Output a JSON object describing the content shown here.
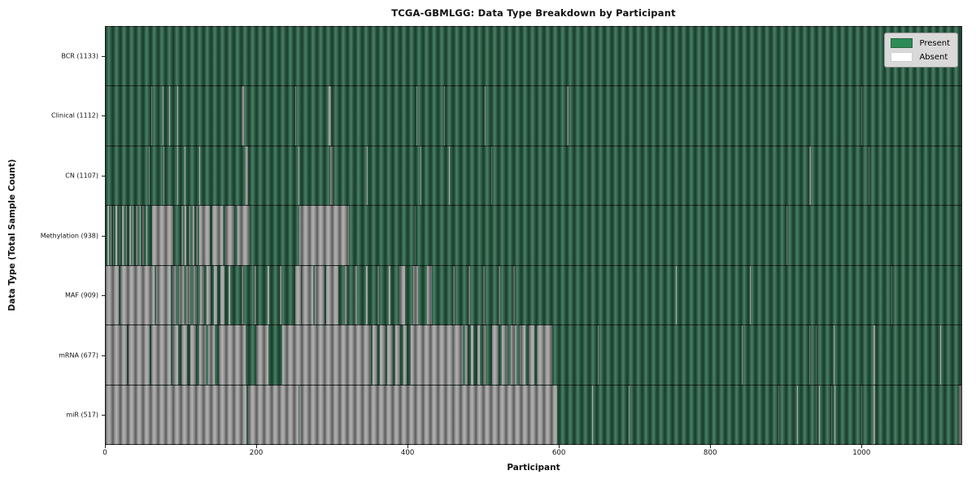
{
  "title": "TCGA-GBMLGG: Data Type Breakdown by Participant",
  "legend": {
    "present_label": "Present",
    "absent_label": "Absent"
  },
  "chart_data": {
    "type": "heatmap",
    "title": "TCGA-GBMLGG: Data Type Breakdown by Participant",
    "xlabel": "Participant",
    "ylabel": "Data Type (Total Sample Count)",
    "n_participants": 1133,
    "x_ticks": [
      0,
      200,
      400,
      600,
      800,
      1000
    ],
    "x_range": [
      0,
      1133
    ],
    "grid": false,
    "legend_position": "upper right",
    "colors": {
      "present": "#31694e",
      "absent": "#a5a5a5",
      "legend_present": "#2e8b57",
      "legend_absent": "#ffffff",
      "legend_bg": "#d9d9d9"
    },
    "rows": [
      {
        "label": "BCR (1133)",
        "name": "BCR",
        "total_samples": 1133,
        "absent_ranges": []
      },
      {
        "label": "Clinical (1112)",
        "name": "Clinical",
        "total_samples": 1112,
        "absent_ranges": [
          [
            60,
            61
          ],
          [
            75,
            76
          ],
          [
            84,
            85
          ],
          [
            95,
            96
          ],
          [
            180,
            183
          ],
          [
            251,
            252
          ],
          [
            295,
            298
          ],
          [
            411,
            412
          ],
          [
            448,
            449
          ],
          [
            502,
            503
          ],
          [
            611,
            613
          ],
          [
            1000,
            1002
          ]
        ]
      },
      {
        "label": "CN (1107)",
        "name": "CN",
        "total_samples": 1107,
        "absent_ranges": [
          [
            57,
            58
          ],
          [
            77,
            78
          ],
          [
            95,
            96
          ],
          [
            104,
            105
          ],
          [
            124,
            125
          ],
          [
            185,
            188
          ],
          [
            255,
            256
          ],
          [
            297,
            300
          ],
          [
            346,
            347
          ],
          [
            417,
            418
          ],
          [
            455,
            456
          ],
          [
            511,
            512
          ],
          [
            932,
            934
          ],
          [
            1010,
            1011
          ]
        ]
      },
      {
        "label": "Methylation (938)",
        "name": "Methylation",
        "total_samples": 938,
        "absent_ranges": [
          [
            2,
            4
          ],
          [
            6,
            8
          ],
          [
            10,
            11
          ],
          [
            13,
            15
          ],
          [
            18,
            19
          ],
          [
            22,
            24
          ],
          [
            27,
            28
          ],
          [
            31,
            33
          ],
          [
            36,
            37
          ],
          [
            40,
            42
          ],
          [
            45,
            46
          ],
          [
            49,
            51
          ],
          [
            54,
            55
          ],
          [
            61,
            89
          ],
          [
            100,
            102
          ],
          [
            105,
            107
          ],
          [
            110,
            112
          ],
          [
            115,
            117
          ],
          [
            120,
            122
          ],
          [
            124,
            138
          ],
          [
            141,
            155
          ],
          [
            158,
            170
          ],
          [
            174,
            191
          ],
          [
            256,
            322
          ],
          [
            409,
            410
          ],
          [
            901,
            902
          ]
        ]
      },
      {
        "label": "MAF (909)",
        "name": "MAF",
        "total_samples": 909,
        "absent_ranges": [
          [
            0,
            17
          ],
          [
            19,
            65
          ],
          [
            67,
            86
          ],
          [
            88,
            93
          ],
          [
            97,
            103
          ],
          [
            107,
            112
          ],
          [
            116,
            121
          ],
          [
            125,
            130
          ],
          [
            134,
            139
          ],
          [
            143,
            148
          ],
          [
            152,
            157
          ],
          [
            163,
            165
          ],
          [
            180,
            182
          ],
          [
            197,
            199
          ],
          [
            214,
            216
          ],
          [
            231,
            233
          ],
          [
            251,
            258
          ],
          [
            260,
            275
          ],
          [
            277,
            290
          ],
          [
            292,
            308
          ],
          [
            317,
            320
          ],
          [
            330,
            333
          ],
          [
            345,
            347
          ],
          [
            360,
            362
          ],
          [
            375,
            377
          ],
          [
            389,
            396
          ],
          [
            407,
            414
          ],
          [
            425,
            432
          ],
          [
            460,
            462
          ],
          [
            480,
            483
          ],
          [
            500,
            502
          ],
          [
            520,
            522
          ],
          [
            540,
            542
          ],
          [
            755,
            756
          ],
          [
            853,
            854
          ],
          [
            1040,
            1041
          ]
        ]
      },
      {
        "label": "mRNA (677)",
        "name": "mRNA",
        "total_samples": 677,
        "absent_ranges": [
          [
            0,
            28
          ],
          [
            30,
            58
          ],
          [
            60,
            86
          ],
          [
            88,
            96
          ],
          [
            100,
            108
          ],
          [
            112,
            120
          ],
          [
            124,
            132
          ],
          [
            136,
            144
          ],
          [
            150,
            185
          ],
          [
            199,
            215
          ],
          [
            234,
            351
          ],
          [
            353,
            360
          ],
          [
            363,
            370
          ],
          [
            373,
            380
          ],
          [
            383,
            390
          ],
          [
            394,
            399
          ],
          [
            404,
            473
          ],
          [
            476,
            479
          ],
          [
            484,
            487
          ],
          [
            492,
            495
          ],
          [
            500,
            503
          ],
          [
            512,
            520
          ],
          [
            524,
            532
          ],
          [
            536,
            544
          ],
          [
            548,
            556
          ],
          [
            560,
            568
          ],
          [
            571,
            591
          ],
          [
            652,
            653
          ],
          [
            842,
            843
          ],
          [
            932,
            933
          ],
          [
            940,
            941
          ],
          [
            964,
            965
          ],
          [
            1017,
            1019
          ],
          [
            1105,
            1106
          ]
        ]
      },
      {
        "label": "miR (517)",
        "name": "miR",
        "total_samples": 517,
        "absent_ranges": [
          [
            0,
            186
          ],
          [
            188,
            255
          ],
          [
            256,
            598
          ],
          [
            644,
            645
          ],
          [
            693,
            694
          ],
          [
            891,
            892
          ],
          [
            915,
            916
          ],
          [
            940,
            941
          ],
          [
            945,
            946
          ],
          [
            961,
            962
          ],
          [
            965,
            966
          ],
          [
            1001,
            1002
          ],
          [
            1017,
            1019
          ],
          [
            1130,
            1133
          ]
        ]
      }
    ]
  }
}
